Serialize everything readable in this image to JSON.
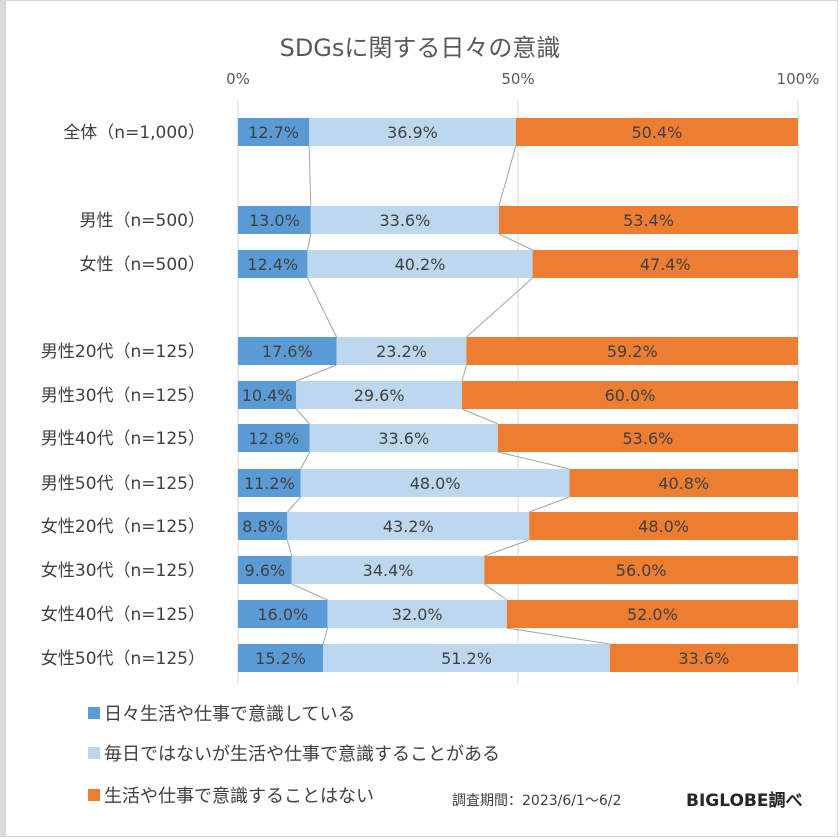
{
  "chart_data": {
    "type": "bar",
    "orientation": "horizontal",
    "stacked": "100%",
    "title": "SDGsに関する日々の意識",
    "xlabel": "",
    "ylabel": "",
    "xlim": [
      0,
      100
    ],
    "x_ticks": [
      "0%",
      "50%",
      "100%"
    ],
    "categories": [
      "全体（n=1,000）",
      "男性（n=500）",
      "女性（n=500）",
      "男性20代（n=125）",
      "男性30代（n=125）",
      "男性40代（n=125）",
      "男性50代（n=125）",
      "女性20代（n=125）",
      "女性30代（n=125）",
      "女性40代（n=125）",
      "女性50代（n=125）"
    ],
    "series": [
      {
        "name": "日々生活や仕事で意識している",
        "color": "#5b9bd5",
        "values": [
          12.7,
          13.0,
          12.4,
          17.6,
          10.4,
          12.8,
          11.2,
          8.8,
          9.6,
          16.0,
          15.2
        ],
        "labels": [
          "12.7%",
          "13.0%",
          "12.4%",
          "17.6%",
          "10.4%",
          "12.8%",
          "11.2%",
          "8.8%",
          "9.6%",
          "16.0%",
          "15.2%"
        ]
      },
      {
        "name": "毎日ではないが生活や仕事で意識することがある",
        "color": "#bdd7ee",
        "values": [
          36.9,
          33.6,
          40.2,
          23.2,
          29.6,
          33.6,
          48.0,
          43.2,
          34.4,
          32.0,
          51.2
        ],
        "labels": [
          "36.9%",
          "33.6%",
          "40.2%",
          "23.2%",
          "29.6%",
          "33.6%",
          "48.0%",
          "43.2%",
          "34.4%",
          "32.0%",
          "51.2%"
        ]
      },
      {
        "name": "生活や仕事で意識することはない",
        "color": "#ed7d31",
        "values": [
          50.4,
          53.4,
          47.4,
          59.2,
          60.0,
          53.6,
          40.8,
          48.0,
          56.0,
          52.0,
          33.6
        ],
        "labels": [
          "50.4%",
          "53.4%",
          "47.4%",
          "59.2%",
          "60.0%",
          "53.6%",
          "40.8%",
          "48.0%",
          "56.0%",
          "52.0%",
          "33.6%"
        ]
      }
    ],
    "grid": true,
    "legend_position": "bottom-left",
    "series_lines": true
  },
  "footer": {
    "period": "調査期間：2023/6/1～6/2",
    "credit": "BIGLOBE調べ"
  }
}
